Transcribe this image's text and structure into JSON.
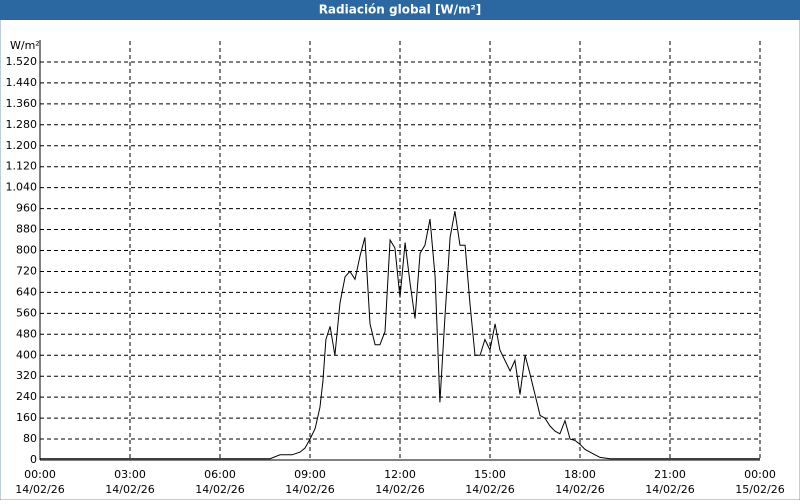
{
  "chart_data": {
    "type": "line",
    "title": "Radiación global [W/m²]",
    "y_label": "W/m²",
    "xlim": [
      0,
      24
    ],
    "ylim": [
      0,
      1600
    ],
    "xticks": [
      {
        "value": 0,
        "label": "00:00",
        "date": "14/02/26"
      },
      {
        "value": 3,
        "label": "03:00",
        "date": "14/02/26"
      },
      {
        "value": 6,
        "label": "06:00",
        "date": "14/02/26"
      },
      {
        "value": 9,
        "label": "09:00",
        "date": "14/02/26"
      },
      {
        "value": 12,
        "label": "12:00",
        "date": "14/02/26"
      },
      {
        "value": 15,
        "label": "15:00",
        "date": "14/02/26"
      },
      {
        "value": 18,
        "label": "18:00",
        "date": "14/02/26"
      },
      {
        "value": 21,
        "label": "21:00",
        "date": "14/02/26"
      },
      {
        "value": 24,
        "label": "00:00",
        "date": "15/02/26"
      }
    ],
    "yticks": [
      0,
      80,
      160,
      240,
      320,
      400,
      480,
      560,
      640,
      720,
      800,
      880,
      960,
      {
        "value": 1040,
        "label": "1.040"
      },
      {
        "value": 1120,
        "label": "1.120"
      },
      {
        "value": 1200,
        "label": "1.200"
      },
      {
        "value": 1280,
        "label": "1.280"
      },
      {
        "value": 1360,
        "label": "1.360"
      },
      {
        "value": 1440,
        "label": "1.440"
      },
      {
        "value": 1520,
        "label": "1.520"
      }
    ],
    "grid": true,
    "color": "#000000",
    "x": [
      0,
      7.67,
      8,
      8.4,
      8.67,
      8.83,
      9,
      9.17,
      9.33,
      9.43,
      9.53,
      9.67,
      9.83,
      10,
      10.17,
      10.33,
      10.5,
      10.67,
      10.83,
      11,
      11.17,
      11.33,
      11.5,
      11.67,
      11.83,
      12,
      12.17,
      12.33,
      12.5,
      12.67,
      12.83,
      13,
      13.17,
      13.33,
      13.5,
      13.67,
      13.83,
      14,
      14.17,
      14.33,
      14.5,
      14.67,
      14.83,
      15,
      15.17,
      15.33,
      15.5,
      15.67,
      15.83,
      16,
      16.17,
      16.33,
      16.5,
      16.67,
      16.83,
      17,
      17.17,
      17.33,
      17.5,
      17.67,
      17.83,
      18,
      18.17,
      18.33,
      18.5,
      18.67,
      19,
      24
    ],
    "values": [
      5,
      5,
      20,
      20,
      30,
      45,
      80,
      120,
      200,
      300,
      460,
      510,
      400,
      600,
      700,
      720,
      690,
      780,
      850,
      520,
      440,
      440,
      490,
      840,
      810,
      620,
      830,
      680,
      540,
      790,
      820,
      920,
      700,
      220,
      550,
      850,
      950,
      820,
      820,
      600,
      400,
      400,
      460,
      420,
      520,
      420,
      380,
      340,
      380,
      250,
      400,
      330,
      250,
      170,
      160,
      130,
      110,
      100,
      150,
      80,
      75,
      60,
      40,
      30,
      20,
      10,
      5,
      5
    ]
  }
}
